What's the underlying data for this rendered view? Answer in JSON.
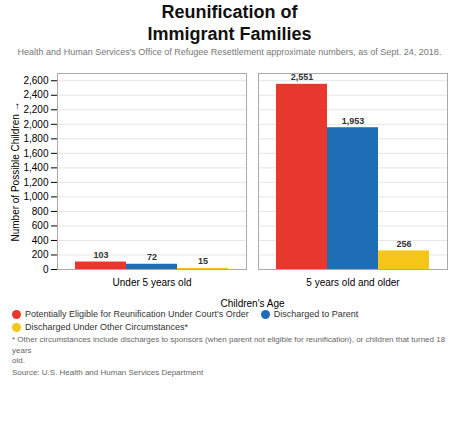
{
  "chart_data": {
    "type": "bar",
    "title": "Reunification of\nImmigrant Families",
    "subtitle": "Health and Human Services's Office of Refugee Resettlement approximate numbers, as of Sept. 24, 2018.",
    "xlabel": "Children's Age",
    "ylabel": "Number of Possible Children",
    "categories": [
      "Under 5 years old",
      "5 years old and older"
    ],
    "series": [
      {
        "name": "Potentially Eligible for Reunification Under Court's Order",
        "color": "#e8372c",
        "values": [
          103,
          2551
        ],
        "value_labels": [
          "103",
          "2,551"
        ]
      },
      {
        "name": "Discharged to Parent",
        "color": "#1f6db5",
        "values": [
          72,
          1953
        ],
        "value_labels": [
          "72",
          "1,953"
        ]
      },
      {
        "name": "Discharged Under Other Circumstances*",
        "color": "#f5c518",
        "values": [
          15,
          256
        ],
        "value_labels": [
          "15",
          "256"
        ]
      }
    ],
    "ylim": [
      0,
      2700
    ],
    "yticks": [
      0,
      200,
      400,
      600,
      800,
      {
        "value": 1000,
        "label": "1,000"
      },
      {
        "value": 1200,
        "label": "1,200"
      },
      {
        "value": 1400,
        "label": "1,400"
      },
      {
        "value": 1600,
        "label": "1,600"
      },
      {
        "value": 1800,
        "label": "1,800"
      },
      {
        "value": 2000,
        "label": "2,000"
      },
      {
        "value": 2200,
        "label": "2,200"
      },
      {
        "value": 2400,
        "label": "2,400"
      },
      {
        "value": 2600,
        "label": "2,600"
      }
    ],
    "grid": true,
    "data_labels": true,
    "legend": "bottom",
    "annotations": [
      "* Other circumstances include discharges to sponsors (when parent not eligible for reunification), or children that turned 18 years\nold.",
      "Source: U.S. Health and Human Services Department"
    ]
  }
}
